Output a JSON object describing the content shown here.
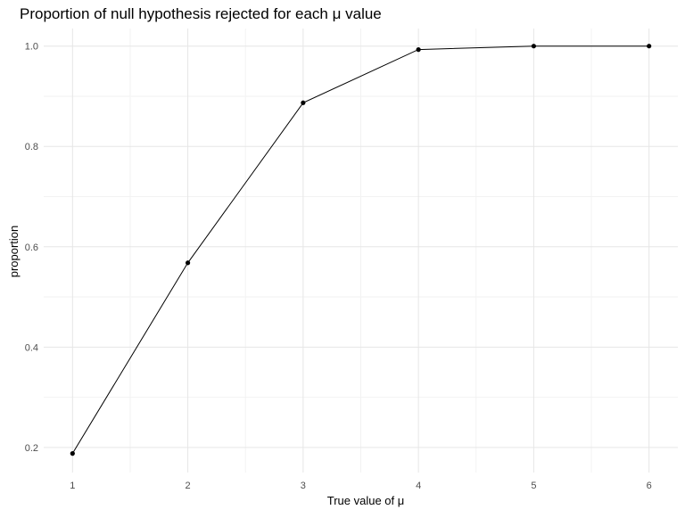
{
  "chart_data": {
    "type": "line",
    "title": "Proportion of null hypothesis rejected for each μ value",
    "xlabel": "True value of μ",
    "ylabel": "proportion",
    "x": [
      1,
      2,
      3,
      4,
      5,
      6
    ],
    "xticks": [
      "1",
      "2",
      "3",
      "4",
      "5",
      "6"
    ],
    "yticks": [
      "0.2",
      "0.4",
      "0.6",
      "0.8",
      "1.0"
    ],
    "series": [
      {
        "values": [
          0.188,
          0.568,
          0.887,
          0.993,
          1.0,
          1.0
        ]
      }
    ],
    "xlim": [
      0.75,
      6.25
    ],
    "ylim": [
      0.15,
      1.035
    ],
    "grid": true,
    "legend": "none",
    "colors": {
      "line": "#000000",
      "point": "#000000",
      "grid_major": "#e6e6e6",
      "grid_minor": "#f2f2f2",
      "tick_text": "#4d4d4d",
      "axis_title": "#000000"
    }
  }
}
